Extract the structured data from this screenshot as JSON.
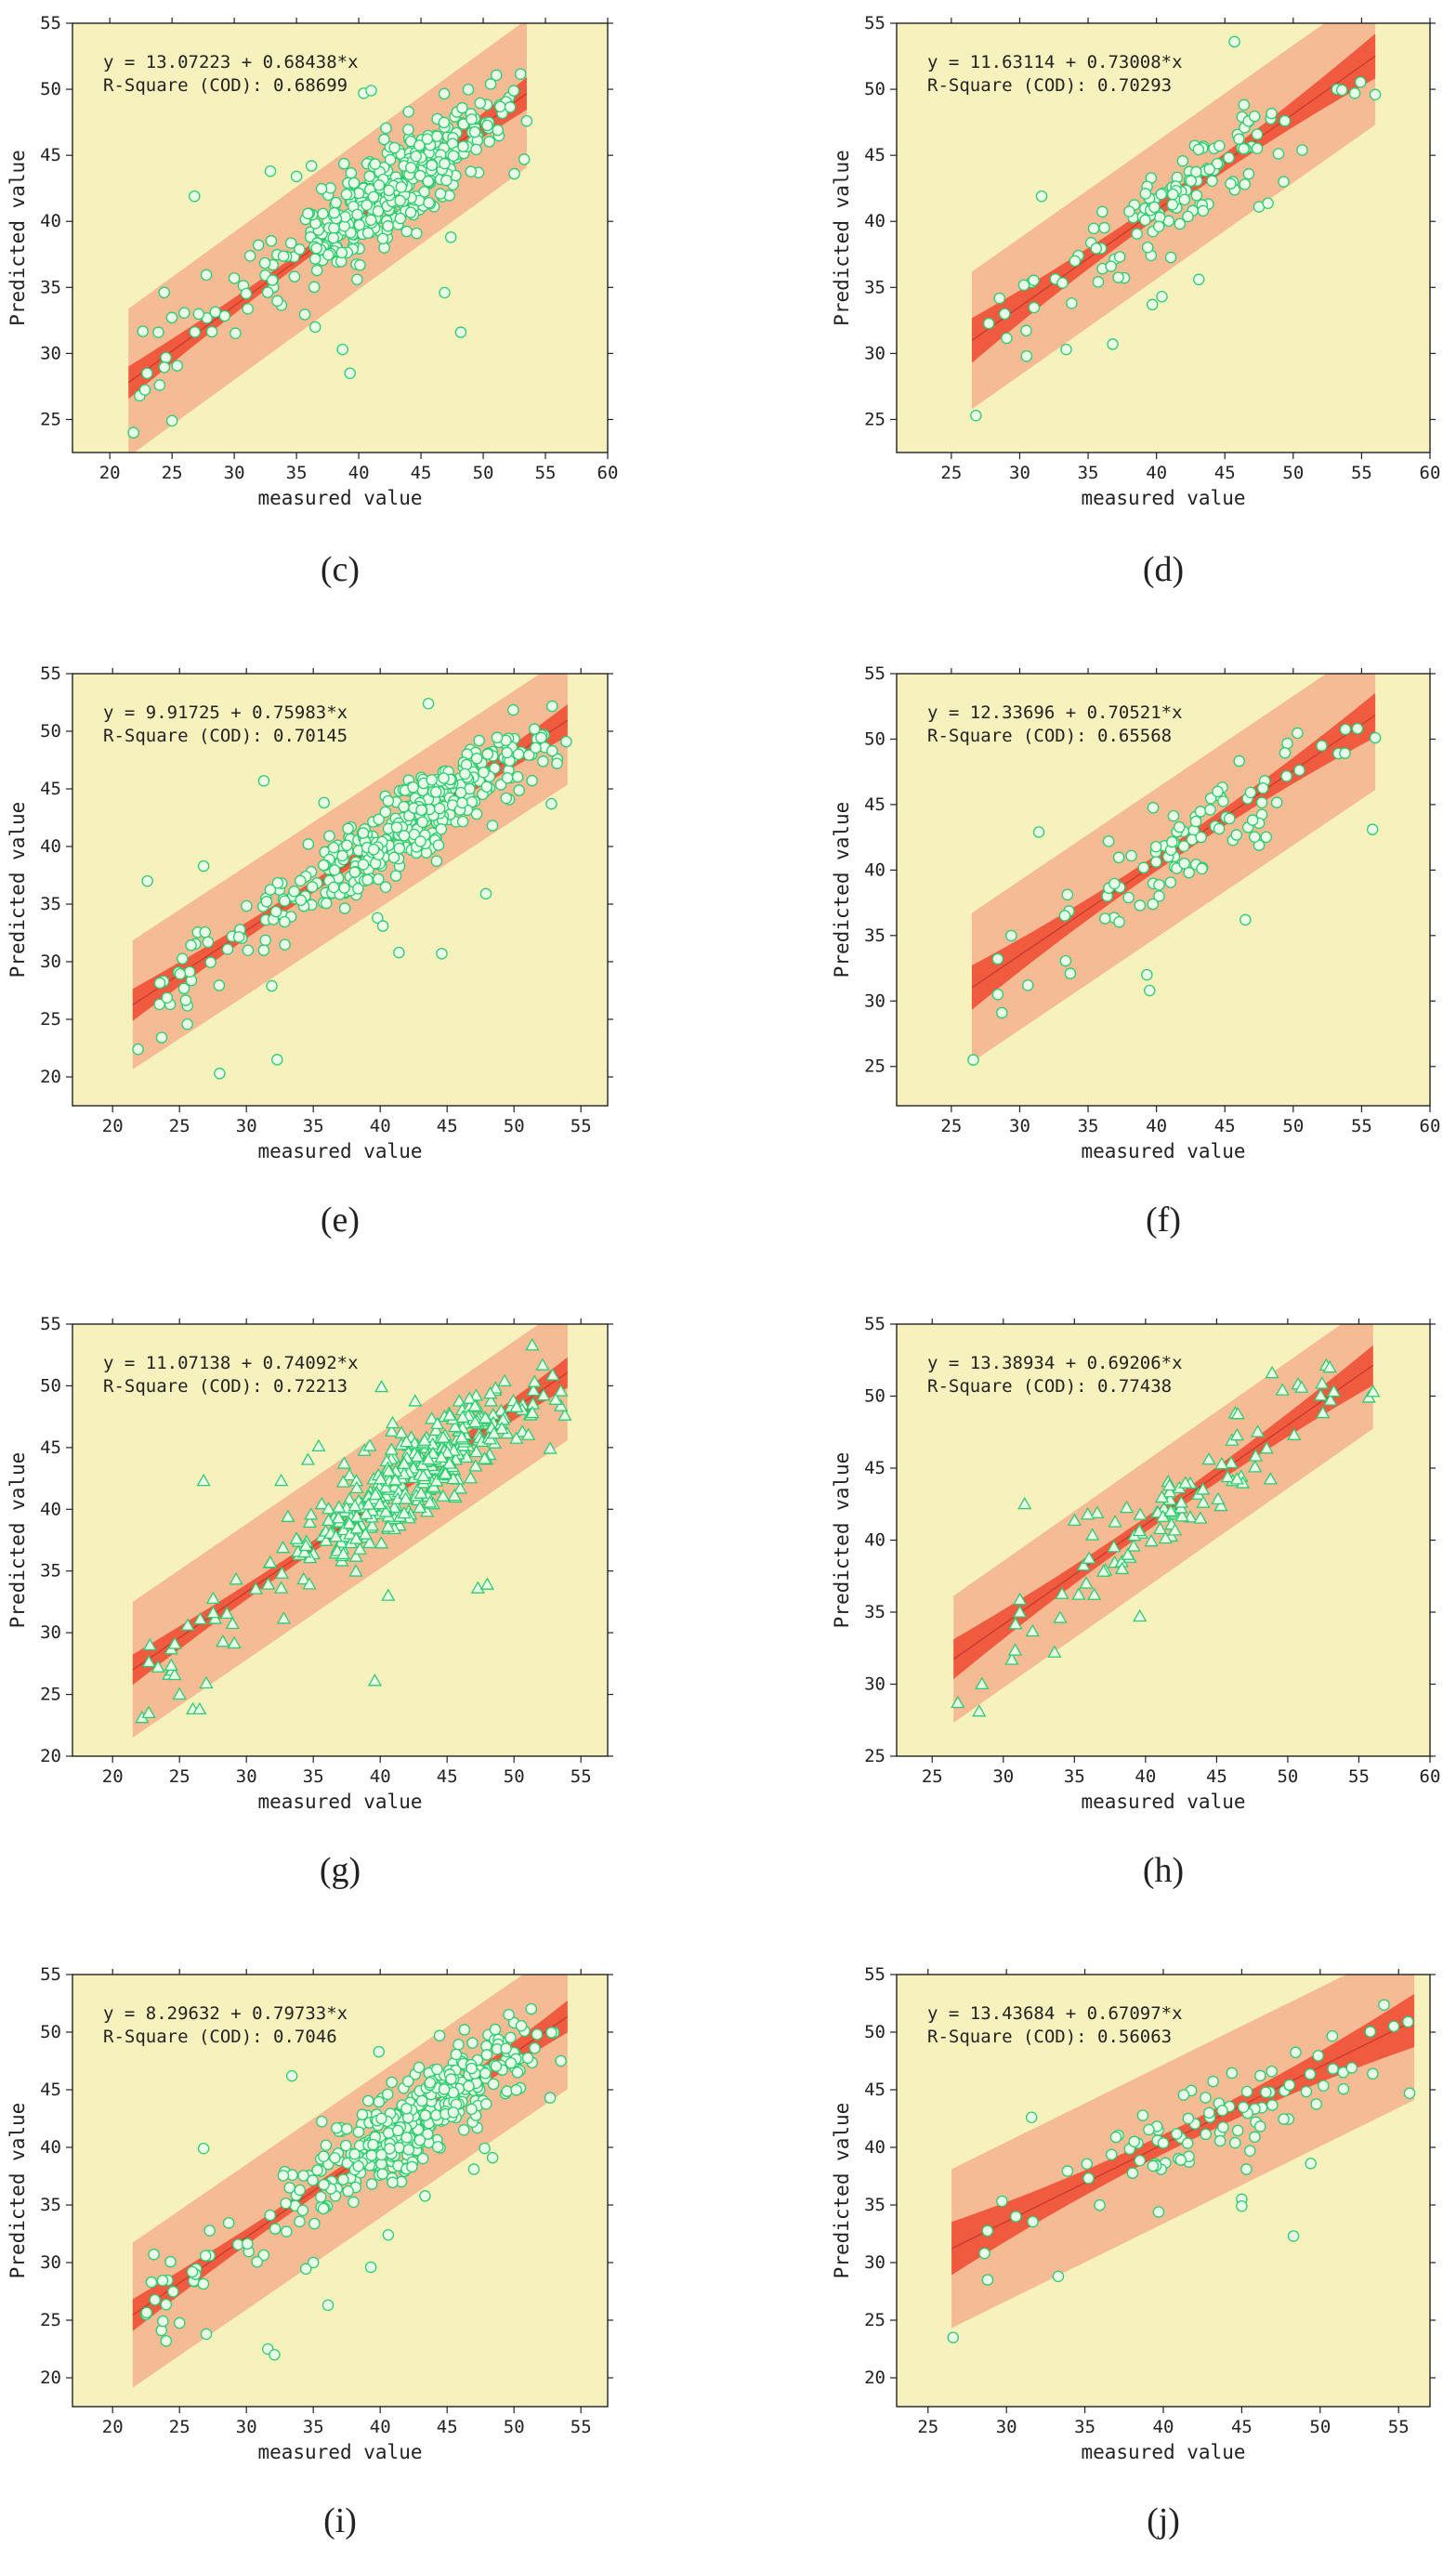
{
  "chart_data": [
    {
      "id": "c",
      "type": "scatter",
      "panel_label": "(c)",
      "xlabel": "measured value",
      "ylabel": "Predicted value",
      "xlim": [
        17,
        60
      ],
      "xticks": [
        20,
        25,
        30,
        35,
        40,
        45,
        50,
        55,
        60
      ],
      "ylim": [
        22.5,
        55
      ],
      "yticks": [
        25,
        30,
        35,
        40,
        45,
        50,
        55
      ],
      "equation": "y = 13.07223 + 0.68438*x",
      "r_square": "R-Square (COD): 0.68699",
      "intercept": 13.07223,
      "slope": 0.68438,
      "fit_range": [
        21.5,
        53.5
      ],
      "conf_halfwidth": 0.8,
      "pred_halfwidth": 5.6,
      "marker": "circle",
      "n_points": 430,
      "points": [
        [
          21.9,
          24
        ],
        [
          22.4,
          26.8
        ],
        [
          23,
          28.5
        ],
        [
          23.9,
          31.6
        ],
        [
          24,
          27.6
        ],
        [
          25,
          24.9
        ],
        [
          26.8,
          41.9
        ],
        [
          30,
          35.7
        ],
        [
          32.9,
          43.8
        ],
        [
          35,
          43.4
        ],
        [
          36.2,
          44.2
        ],
        [
          36.5,
          32
        ],
        [
          38.7,
          30.3
        ],
        [
          39.3,
          28.5
        ],
        [
          40.4,
          49.7
        ],
        [
          41,
          49.9
        ],
        [
          44,
          48.3
        ],
        [
          46.9,
          34.6
        ],
        [
          47.4,
          38.8
        ],
        [
          48.2,
          31.6
        ],
        [
          50.6,
          50.4
        ],
        [
          52.5,
          43.6
        ],
        [
          53.3,
          44.7
        ],
        [
          53.5,
          47.6
        ]
      ],
      "series_color": "#2ecc71"
    },
    {
      "id": "d",
      "type": "scatter",
      "panel_label": "(d)",
      "xlabel": "measured value",
      "ylabel": "Predicted value",
      "xlim": [
        21,
        60
      ],
      "xticks": [
        25,
        30,
        35,
        40,
        45,
        50,
        55,
        60
      ],
      "ylim": [
        22.5,
        55
      ],
      "yticks": [
        25,
        30,
        35,
        40,
        45,
        50,
        55
      ],
      "equation": "y = 11.63114 + 0.73008*x",
      "r_square": "R-Square (COD): 0.70293",
      "intercept": 11.63114,
      "slope": 0.73008,
      "fit_range": [
        26.5,
        56
      ],
      "conf_halfwidth": 1.1,
      "pred_halfwidth": 5.2,
      "marker": "circle",
      "n_points": 140,
      "points": [
        [
          26.8,
          25.3
        ],
        [
          28.9,
          33
        ],
        [
          30.5,
          29.8
        ],
        [
          31.6,
          41.9
        ],
        [
          33.4,
          30.3
        ],
        [
          33.8,
          33.8
        ],
        [
          36.8,
          30.7
        ],
        [
          39.7,
          33.7
        ],
        [
          40.4,
          34.3
        ],
        [
          43.1,
          35.6
        ],
        [
          45.7,
          53.6
        ],
        [
          47.5,
          41.1
        ],
        [
          49.3,
          43
        ],
        [
          53.2,
          50
        ],
        [
          54.5,
          49.7
        ],
        [
          56,
          49.6
        ]
      ],
      "series_color": "#2ecc71"
    },
    {
      "id": "e",
      "type": "scatter",
      "panel_label": "(e)",
      "xlabel": "measured value",
      "ylabel": "Predicted value",
      "xlim": [
        17,
        57
      ],
      "xticks": [
        20,
        25,
        30,
        35,
        40,
        45,
        50,
        55
      ],
      "ylim": [
        17.5,
        55
      ],
      "yticks": [
        20,
        25,
        30,
        35,
        40,
        45,
        50,
        55
      ],
      "equation": "y = 9.91725 + 0.75983*x",
      "r_square": "R-Square (COD): 0.70145",
      "intercept": 9.91725,
      "slope": 0.75983,
      "fit_range": [
        21.5,
        54
      ],
      "conf_halfwidth": 0.9,
      "pred_halfwidth": 5.6,
      "marker": "circle",
      "n_points": 430,
      "points": [
        [
          21.9,
          22.4
        ],
        [
          22.6,
          37
        ],
        [
          23.5,
          26.3
        ],
        [
          24.3,
          26.3
        ],
        [
          26.8,
          38.3
        ],
        [
          28,
          20.3
        ],
        [
          31.3,
          45.7
        ],
        [
          31.9,
          27.9
        ],
        [
          32.3,
          21.5
        ],
        [
          35.8,
          43.8
        ],
        [
          39.8,
          33.8
        ],
        [
          40.2,
          33.1
        ],
        [
          41.4,
          30.8
        ],
        [
          43.6,
          52.4
        ],
        [
          44.6,
          30.7
        ],
        [
          47.9,
          35.9
        ],
        [
          52.8,
          43.7
        ],
        [
          53.9,
          49.1
        ]
      ],
      "series_color": "#2ecc71"
    },
    {
      "id": "f",
      "type": "scatter",
      "panel_label": "(f)",
      "xlabel": "measured value",
      "ylabel": "Predicted value",
      "xlim": [
        21,
        60
      ],
      "xticks": [
        25,
        30,
        35,
        40,
        45,
        50,
        55,
        60
      ],
      "ylim": [
        22,
        55
      ],
      "yticks": [
        25,
        30,
        35,
        40,
        45,
        50,
        55
      ],
      "equation": "y = 12.33696 + 0.70521*x",
      "r_square": "R-Square (COD): 0.65568",
      "intercept": 12.33696,
      "slope": 0.70521,
      "fit_range": [
        26.5,
        56
      ],
      "conf_halfwidth": 1.1,
      "pred_halfwidth": 5.7,
      "marker": "circle",
      "n_points": 100,
      "points": [
        [
          26.6,
          25.5
        ],
        [
          28.4,
          30.5
        ],
        [
          28.7,
          29.1
        ],
        [
          30.6,
          31.2
        ],
        [
          31.4,
          42.9
        ],
        [
          33.7,
          32.1
        ],
        [
          36.5,
          42.2
        ],
        [
          39.3,
          32
        ],
        [
          39.5,
          30.8
        ],
        [
          46.5,
          36.2
        ],
        [
          47.5,
          41.9
        ],
        [
          53.3,
          48.9
        ],
        [
          54.7,
          50.8
        ],
        [
          55.8,
          43.1
        ],
        [
          56,
          50.1
        ]
      ],
      "series_color": "#2ecc71"
    },
    {
      "id": "g",
      "type": "scatter",
      "panel_label": "(g)",
      "xlabel": "measured value",
      "ylabel": "Predicted value",
      "xlim": [
        17,
        57
      ],
      "xticks": [
        20,
        25,
        30,
        35,
        40,
        45,
        50,
        55
      ],
      "ylim": [
        20,
        55
      ],
      "yticks": [
        20,
        25,
        30,
        35,
        40,
        45,
        50,
        55
      ],
      "equation": "y = 11.07138 + 0.74092*x",
      "r_square": "R-Square (COD): 0.72213",
      "intercept": 11.07138,
      "slope": 0.74092,
      "fit_range": [
        21.5,
        54
      ],
      "conf_halfwidth": 0.8,
      "pred_halfwidth": 5.5,
      "marker": "triangle",
      "n_points": 430,
      "points": [
        [
          22.2,
          23.1
        ],
        [
          22.7,
          23.5
        ],
        [
          23.4,
          27.2
        ],
        [
          24.2,
          26.6
        ],
        [
          25,
          25
        ],
        [
          26,
          23.8
        ],
        [
          26.5,
          23.8
        ],
        [
          26.8,
          42.3
        ],
        [
          27,
          25.9
        ],
        [
          32.6,
          42.3
        ],
        [
          34.6,
          44
        ],
        [
          35.4,
          45.1
        ],
        [
          39.6,
          26.1
        ],
        [
          40.1,
          49.9
        ],
        [
          40.6,
          33
        ],
        [
          47.3,
          33.6
        ],
        [
          48,
          33.9
        ],
        [
          52.7,
          44.9
        ],
        [
          53.8,
          47.6
        ]
      ],
      "series_color": "#2ecc71"
    },
    {
      "id": "h",
      "type": "scatter",
      "panel_label": "(h)",
      "xlabel": "measured value",
      "ylabel": "Predicted value",
      "xlim": [
        22.5,
        60
      ],
      "xticks": [
        25,
        30,
        35,
        40,
        45,
        50,
        55,
        60
      ],
      "ylim": [
        25,
        55
      ],
      "yticks": [
        25,
        30,
        35,
        40,
        45,
        50,
        55
      ],
      "equation": "y = 13.38934 + 0.69206*x",
      "r_square": "R-Square (COD): 0.77438",
      "intercept": 13.38934,
      "slope": 0.69206,
      "fit_range": [
        26.5,
        56
      ],
      "conf_halfwidth": 0.9,
      "pred_halfwidth": 4.4,
      "marker": "triangle",
      "n_points": 100,
      "points": [
        [
          26.8,
          28.7
        ],
        [
          28.3,
          28.1
        ],
        [
          28.5,
          30
        ],
        [
          30.6,
          31.7
        ],
        [
          31.5,
          42.5
        ],
        [
          33.6,
          32.2
        ],
        [
          34,
          34.6
        ],
        [
          39.6,
          34.7
        ],
        [
          46.3,
          48.8
        ],
        [
          48.9,
          51.6
        ],
        [
          53,
          49.7
        ],
        [
          55.7,
          49.9
        ],
        [
          56,
          50.3
        ]
      ],
      "series_color": "#2ecc71"
    },
    {
      "id": "i",
      "type": "scatter",
      "panel_label": "(i)",
      "xlabel": "measured value",
      "ylabel": "Predicted value",
      "xlim": [
        17,
        57
      ],
      "xticks": [
        20,
        25,
        30,
        35,
        40,
        45,
        50,
        55
      ],
      "ylim": [
        17.5,
        55
      ],
      "yticks": [
        20,
        25,
        30,
        35,
        40,
        45,
        50,
        55
      ],
      "equation": "y = 8.29632 + 0.79733*x",
      "r_square": "R-Square (COD): 0.7046",
      "intercept": 8.29632,
      "slope": 0.79733,
      "fit_range": [
        21.5,
        54
      ],
      "conf_halfwidth": 0.9,
      "pred_halfwidth": 6.3,
      "marker": "circle",
      "n_points": 430,
      "points": [
        [
          22.5,
          25.5
        ],
        [
          22.9,
          28.3
        ],
        [
          24,
          23.2
        ],
        [
          26.8,
          39.9
        ],
        [
          27,
          23.8
        ],
        [
          31.6,
          22.5
        ],
        [
          32.1,
          22
        ],
        [
          33.4,
          46.2
        ],
        [
          35,
          30
        ],
        [
          36.1,
          26.3
        ],
        [
          39.3,
          29.6
        ],
        [
          39.9,
          48.3
        ],
        [
          40.6,
          32.4
        ],
        [
          47,
          38.1
        ],
        [
          48.4,
          39.1
        ],
        [
          52.7,
          44.3
        ],
        [
          53.5,
          47.5
        ]
      ],
      "series_color": "#2ecc71"
    },
    {
      "id": "j",
      "type": "scatter",
      "panel_label": "(j)",
      "xlabel": "measured value",
      "ylabel": "Predicted value",
      "xlim": [
        23,
        57
      ],
      "xticks": [
        25,
        30,
        35,
        40,
        45,
        50,
        55
      ],
      "ylim": [
        17.5,
        55
      ],
      "yticks": [
        20,
        25,
        30,
        35,
        40,
        45,
        50,
        55
      ],
      "equation": "y = 13.43684 + 0.67097*x",
      "r_square": "R-Square (COD): 0.56063",
      "intercept": 13.43684,
      "slope": 0.67097,
      "fit_range": [
        26.5,
        56
      ],
      "conf_halfwidth": 1.5,
      "pred_halfwidth": 6.9,
      "marker": "circle",
      "n_points": 100,
      "points": [
        [
          26.6,
          23.5
        ],
        [
          28.6,
          30.8
        ],
        [
          28.8,
          28.5
        ],
        [
          30.6,
          34
        ],
        [
          31.6,
          42.6
        ],
        [
          33.3,
          28.8
        ],
        [
          39.7,
          34.4
        ],
        [
          45,
          35.5
        ],
        [
          45.3,
          38.1
        ],
        [
          45,
          34.9
        ],
        [
          48.3,
          32.3
        ],
        [
          49.4,
          38.6
        ],
        [
          54.7,
          50.5
        ],
        [
          55.7,
          44.7
        ],
        [
          55.6,
          50.9
        ]
      ],
      "series_color": "#2ecc71"
    }
  ]
}
